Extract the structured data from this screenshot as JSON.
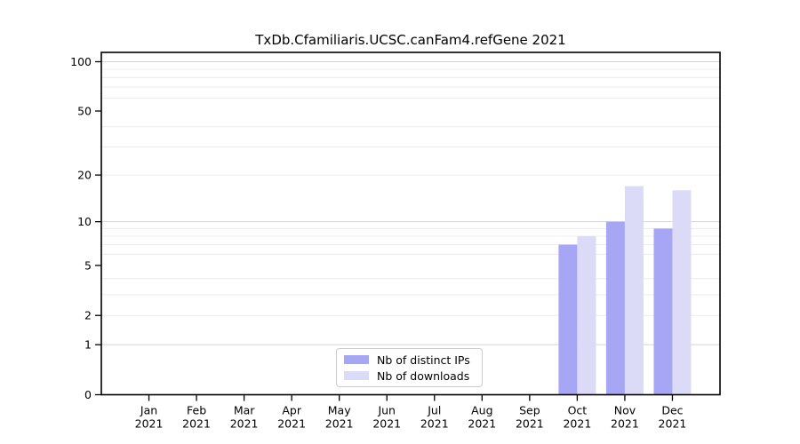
{
  "chart_data": {
    "type": "bar",
    "title": "TxDb.Cfamiliaris.UCSC.canFam4.refGene 2021",
    "categories": [
      "Jan",
      "Feb",
      "Mar",
      "Apr",
      "May",
      "Jun",
      "Jul",
      "Aug",
      "Sep",
      "Oct",
      "Nov",
      "Dec"
    ],
    "category_year": "2021",
    "series": [
      {
        "name": "Nb of distinct IPs",
        "color": "#a6a6f5",
        "values": [
          0,
          0,
          0,
          0,
          0,
          0,
          0,
          0,
          0,
          7,
          10,
          9
        ]
      },
      {
        "name": "Nb of downloads",
        "color": "#dbdbf8",
        "values": [
          0,
          0,
          0,
          0,
          0,
          0,
          0,
          0,
          0,
          8,
          17,
          16
        ]
      }
    ],
    "yscale": "log1p",
    "ylim": [
      0,
      114
    ],
    "yticks": [
      0,
      1,
      2,
      5,
      10,
      20,
      50,
      100
    ],
    "major_gridlines": [
      1,
      10,
      100
    ],
    "minor_gridlines": [
      2,
      3,
      4,
      6,
      7,
      8,
      9,
      20,
      30,
      40,
      60,
      70,
      80,
      90
    ],
    "grid": "horizontal",
    "legend_position": "lower-center-inside",
    "colors": {
      "spine": "#000000",
      "tick": "#000000",
      "text": "#000000",
      "major_grid": "#d4d4d4",
      "minor_grid": "#ececec",
      "background": "#ffffff"
    }
  }
}
